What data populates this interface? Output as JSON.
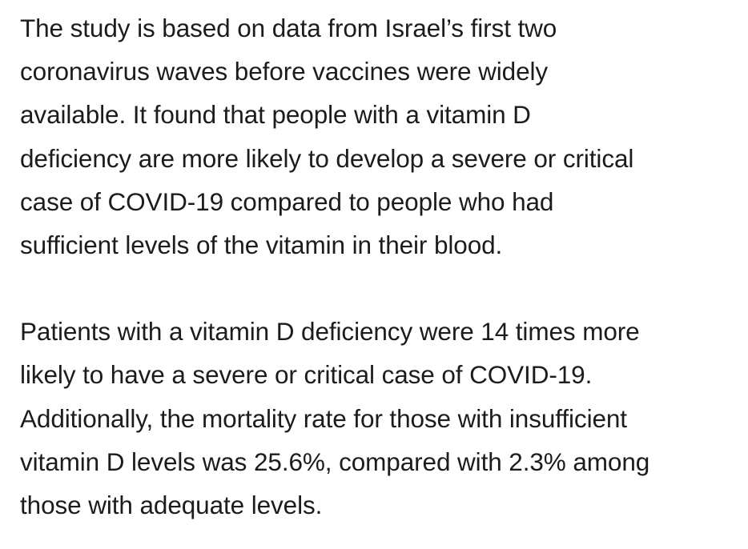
{
  "article": {
    "paragraphs": [
      {
        "lines": [
          "The study is based on data from Israel’s first two",
          "coronavirus waves before vaccines were widely",
          "available. It found that people with a vitamin D",
          "deficiency are more likely to develop a severe or critical",
          "case of COVID-19 compared to people who had",
          "sufficient levels of the vitamin in their blood."
        ]
      },
      {
        "lines": [
          "Patients with a vitamin D deficiency were 14 times more",
          "likely to have a severe or critical case of COVID-19.",
          "Additionally, the mortality rate for those with insufficient",
          "vitamin D levels was 25.6%, compared with 2.3% among",
          "those with adequate levels."
        ]
      }
    ]
  }
}
